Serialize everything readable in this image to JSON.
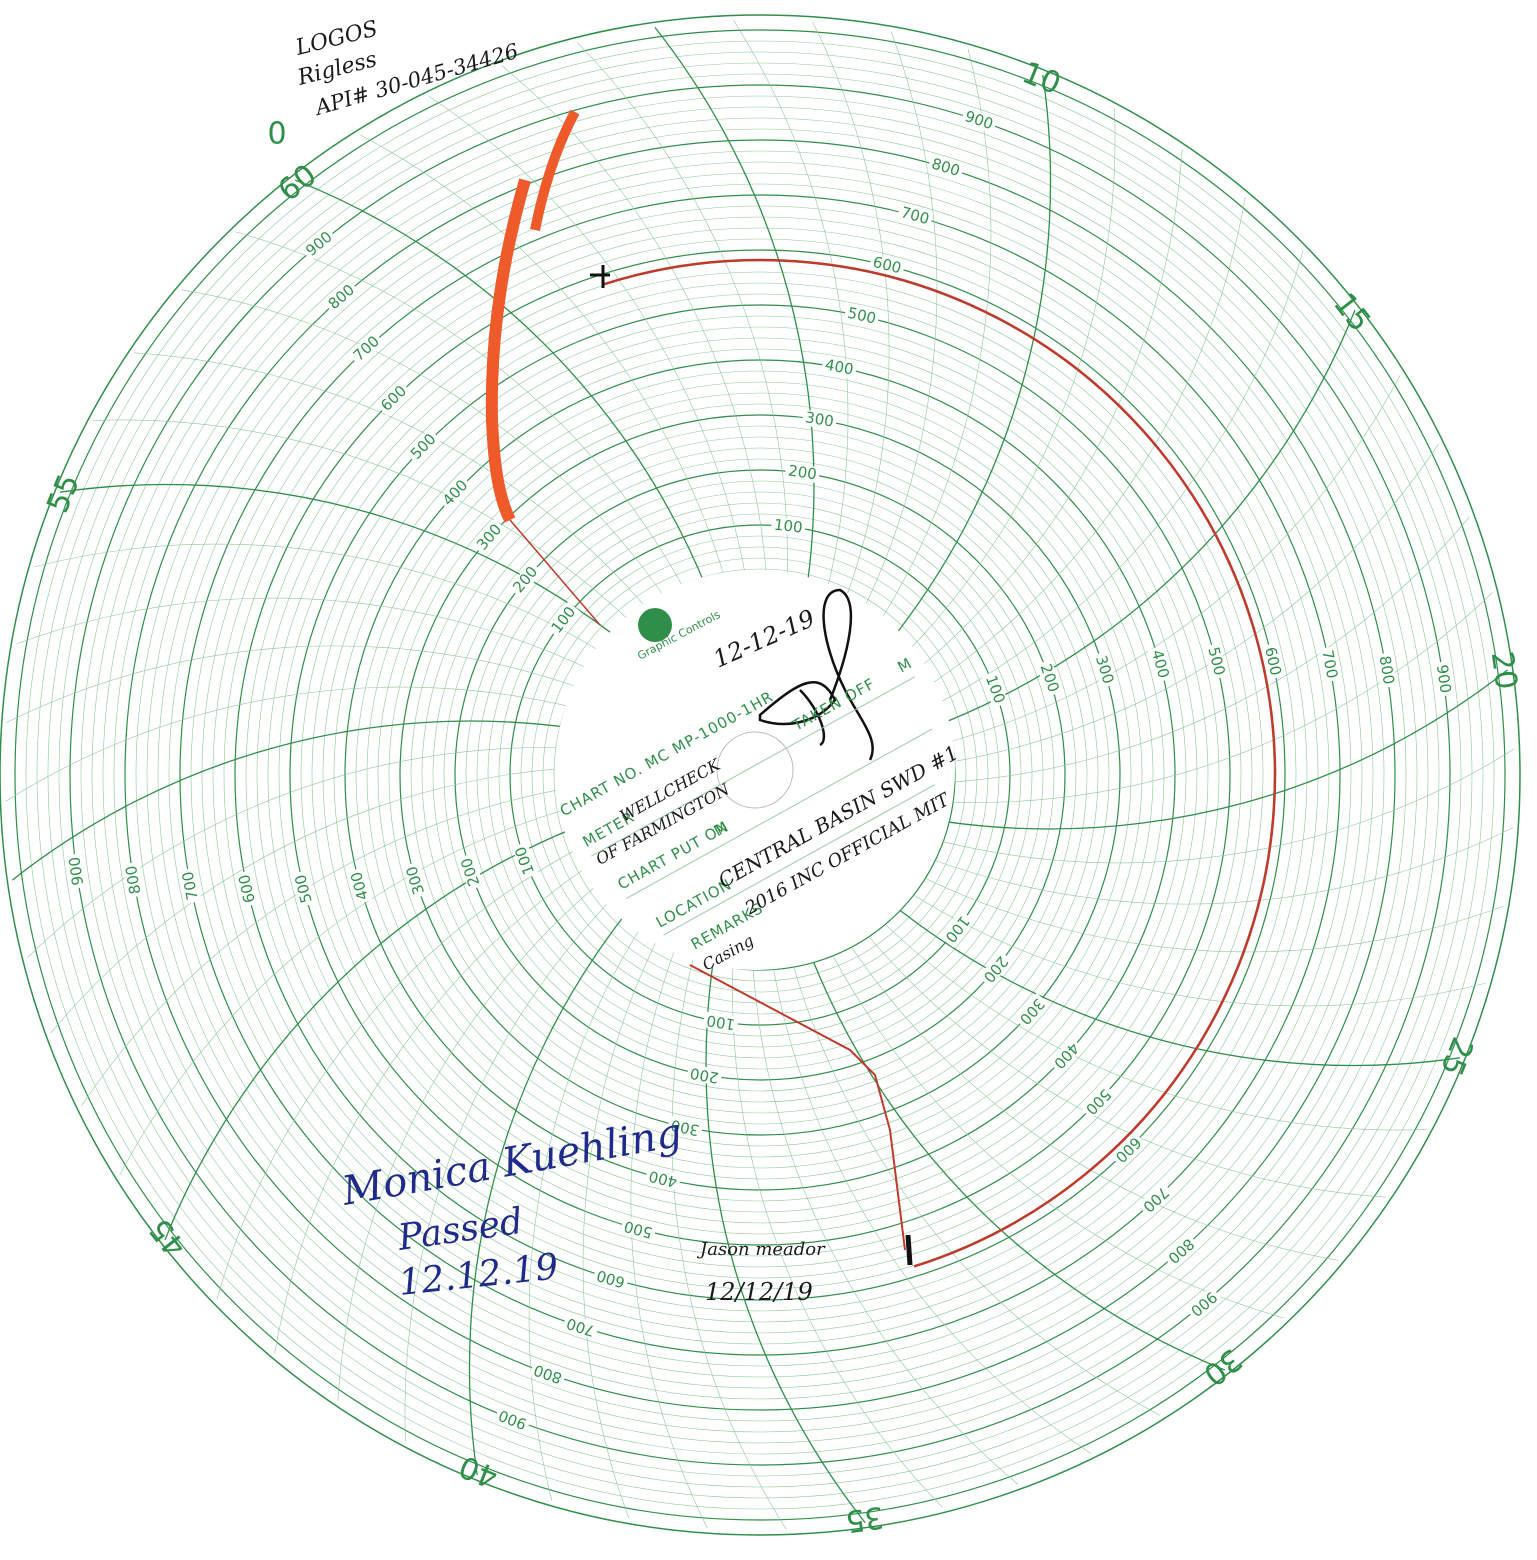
{
  "header_notes": [
    "LOGOS",
    "Rigless",
    "API# 30-045-34426"
  ],
  "start_label": "0",
  "minute_labels": [
    10,
    15,
    20,
    25,
    30,
    35,
    40,
    45,
    55,
    60
  ],
  "pressure_scale": [
    100,
    200,
    300,
    400,
    500,
    600,
    700,
    800,
    900
  ],
  "card": {
    "brand": "Graphic Controls",
    "chart_no": "CHART NO. MC MP-1000-1HR",
    "meter_label": "METER",
    "taken_off_label": "TAKEN OFF",
    "taken_off_unit": "M",
    "put_on_label": "CHART PUT ON",
    "put_on_unit": "M",
    "location_label": "LOCATION",
    "remarks_label": "REMARKS"
  },
  "handwriting": {
    "date_top": "12-12-19",
    "meter": [
      "WELLCHECK",
      "OF FARMINGTON"
    ],
    "location": "CENTRAL BASIN SWD #1",
    "remarks": [
      "2016 INC OFFICIAL MIT",
      "Casing"
    ],
    "witness": [
      "Monica Kuehling",
      "Passed",
      "12.12.19"
    ],
    "operator": [
      "Jason meador",
      "12/12/19"
    ]
  }
}
